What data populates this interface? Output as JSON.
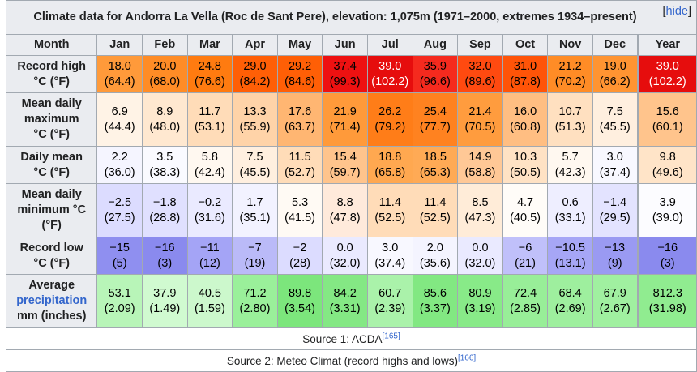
{
  "caption": "Climate data for Andorra La Vella (Roc de Sant Pere), elevation: 1,075m (1971–2000, extremes 1934–present)",
  "hide_link": "hide",
  "headers": [
    "Month",
    "Jan",
    "Feb",
    "Mar",
    "Apr",
    "May",
    "Jun",
    "Jul",
    "Aug",
    "Sep",
    "Oct",
    "Nov",
    "Dec",
    "Year"
  ],
  "rows": [
    {
      "label_lines": [
        "Record high",
        "°C (°F)"
      ],
      "cells": [
        {
          "c": "18.0",
          "f": "(64.4)",
          "bg": "#ff9a3a",
          "fg": "#000000"
        },
        {
          "c": "20.0",
          "f": "(68.0)",
          "bg": "#ff8c26",
          "fg": "#000000"
        },
        {
          "c": "24.8",
          "f": "(76.6)",
          "bg": "#ff7b10",
          "fg": "#000000"
        },
        {
          "c": "29.0",
          "f": "(84.2)",
          "bg": "#ff5f06",
          "fg": "#000000"
        },
        {
          "c": "29.2",
          "f": "(84.6)",
          "bg": "#ff5f06",
          "fg": "#000000"
        },
        {
          "c": "37.4",
          "f": "(99.3)",
          "bg": "#ee1111",
          "fg": "#000000"
        },
        {
          "c": "39.0",
          "f": "(102.2)",
          "bg": "#e60d0d",
          "fg": "#ffffff"
        },
        {
          "c": "35.9",
          "f": "(96.6)",
          "bg": "#f52a1e",
          "fg": "#000000"
        },
        {
          "c": "32.0",
          "f": "(89.6)",
          "bg": "#ff4a10",
          "fg": "#000000"
        },
        {
          "c": "31.0",
          "f": "(87.8)",
          "bg": "#ff5408",
          "fg": "#000000"
        },
        {
          "c": "21.2",
          "f": "(70.2)",
          "bg": "#ff8c26",
          "fg": "#000000"
        },
        {
          "c": "19.0",
          "f": "(66.2)",
          "bg": "#ff9432",
          "fg": "#000000"
        },
        {
          "c": "39.0",
          "f": "(102.2)",
          "bg": "#e60d0d",
          "fg": "#ffffff"
        }
      ]
    },
    {
      "label_lines": [
        "Mean daily",
        "maximum",
        "°C (°F)"
      ],
      "cells": [
        {
          "c": "6.9",
          "f": "(44.4)",
          "bg": "#fff3e6",
          "fg": "#000000"
        },
        {
          "c": "8.9",
          "f": "(48.0)",
          "bg": "#ffe8d0",
          "fg": "#000000"
        },
        {
          "c": "11.7",
          "f": "(53.1)",
          "bg": "#ffdcb8",
          "fg": "#000000"
        },
        {
          "c": "13.3",
          "f": "(55.9)",
          "bg": "#ffd3a8",
          "fg": "#000000"
        },
        {
          "c": "17.6",
          "f": "(63.7)",
          "bg": "#ffb672",
          "fg": "#000000"
        },
        {
          "c": "21.9",
          "f": "(71.4)",
          "bg": "#ff9a3a",
          "fg": "#000000"
        },
        {
          "c": "26.2",
          "f": "(79.2)",
          "bg": "#ff7d18",
          "fg": "#000000"
        },
        {
          "c": "25.4",
          "f": "(77.7)",
          "bg": "#ff8220",
          "fg": "#000000"
        },
        {
          "c": "21.4",
          "f": "(70.5)",
          "bg": "#ff9c3e",
          "fg": "#000000"
        },
        {
          "c": "16.0",
          "f": "(60.8)",
          "bg": "#ffbe82",
          "fg": "#000000"
        },
        {
          "c": "10.7",
          "f": "(51.3)",
          "bg": "#ffe0c0",
          "fg": "#000000"
        },
        {
          "c": "7.5",
          "f": "(45.5)",
          "bg": "#ffefdf",
          "fg": "#000000"
        },
        {
          "c": "15.6",
          "f": "(60.1)",
          "bg": "#ffc48c",
          "fg": "#000000"
        }
      ]
    },
    {
      "label_lines": [
        "Daily mean",
        "°C (°F)"
      ],
      "cells": [
        {
          "c": "2.2",
          "f": "(36.0)",
          "bg": "#f5f5ff",
          "fg": "#000000"
        },
        {
          "c": "3.5",
          "f": "(38.3)",
          "bg": "#fafaff",
          "fg": "#000000"
        },
        {
          "c": "5.8",
          "f": "(42.4)",
          "bg": "#fff8f0",
          "fg": "#000000"
        },
        {
          "c": "7.5",
          "f": "(45.5)",
          "bg": "#ffefdf",
          "fg": "#000000"
        },
        {
          "c": "11.5",
          "f": "(52.7)",
          "bg": "#ffdcb8",
          "fg": "#000000"
        },
        {
          "c": "15.4",
          "f": "(59.7)",
          "bg": "#ffc48c",
          "fg": "#000000"
        },
        {
          "c": "18.8",
          "f": "(65.8)",
          "bg": "#ffa850",
          "fg": "#000000"
        },
        {
          "c": "18.5",
          "f": "(65.3)",
          "bg": "#ffaa55",
          "fg": "#000000"
        },
        {
          "c": "14.9",
          "f": "(58.8)",
          "bg": "#ffc896",
          "fg": "#000000"
        },
        {
          "c": "10.3",
          "f": "(50.5)",
          "bg": "#ffe2c4",
          "fg": "#000000"
        },
        {
          "c": "5.7",
          "f": "(42.3)",
          "bg": "#fff8f0",
          "fg": "#000000"
        },
        {
          "c": "3.0",
          "f": "(37.4)",
          "bg": "#f8f8ff",
          "fg": "#000000"
        },
        {
          "c": "9.8",
          "f": "(49.6)",
          "bg": "#ffe4c8",
          "fg": "#000000"
        }
      ]
    },
    {
      "label_lines": [
        "Mean daily",
        "minimum °C",
        "(°F)"
      ],
      "cells": [
        {
          "c": "−2.5",
          "f": "(27.5)",
          "bg": "#dcdcff",
          "fg": "#000000"
        },
        {
          "c": "−1.8",
          "f": "(28.8)",
          "bg": "#e0e0ff",
          "fg": "#000000"
        },
        {
          "c": "−0.2",
          "f": "(31.6)",
          "bg": "#eaeaff",
          "fg": "#000000"
        },
        {
          "c": "1.7",
          "f": "(35.1)",
          "bg": "#f2f2ff",
          "fg": "#000000"
        },
        {
          "c": "5.3",
          "f": "(41.5)",
          "bg": "#fffaf4",
          "fg": "#000000"
        },
        {
          "c": "8.8",
          "f": "(47.8)",
          "bg": "#ffeadb",
          "fg": "#000000"
        },
        {
          "c": "11.4",
          "f": "(52.5)",
          "bg": "#ffdcb8",
          "fg": "#000000"
        },
        {
          "c": "11.4",
          "f": "(52.5)",
          "bg": "#ffdcb8",
          "fg": "#000000"
        },
        {
          "c": "8.5",
          "f": "(47.3)",
          "bg": "#ffecd8",
          "fg": "#000000"
        },
        {
          "c": "4.7",
          "f": "(40.5)",
          "bg": "#fffcf8",
          "fg": "#000000"
        },
        {
          "c": "0.6",
          "f": "(33.1)",
          "bg": "#eeeeff",
          "fg": "#000000"
        },
        {
          "c": "−1.4",
          "f": "(29.5)",
          "bg": "#e3e3ff",
          "fg": "#000000"
        },
        {
          "c": "3.9",
          "f": "(39.0)",
          "bg": "#fcfcff",
          "fg": "#000000"
        }
      ]
    },
    {
      "label_lines": [
        "Record low",
        "°C (°F)"
      ],
      "cells": [
        {
          "c": "−15",
          "f": "(5)",
          "bg": "#8f8ff0",
          "fg": "#000000"
        },
        {
          "c": "−16",
          "f": "(3)",
          "bg": "#8a8aee",
          "fg": "#000000"
        },
        {
          "c": "−11",
          "f": "(12)",
          "bg": "#a4a4f6",
          "fg": "#000000"
        },
        {
          "c": "−7",
          "f": "(19)",
          "bg": "#babaf8",
          "fg": "#000000"
        },
        {
          "c": "−2",
          "f": "(28)",
          "bg": "#dcdcff",
          "fg": "#000000"
        },
        {
          "c": "0.0",
          "f": "(32.0)",
          "bg": "#eaeaff",
          "fg": "#000000"
        },
        {
          "c": "3.0",
          "f": "(37.4)",
          "bg": "#f8f8ff",
          "fg": "#000000"
        },
        {
          "c": "2.0",
          "f": "(35.6)",
          "bg": "#f4f4ff",
          "fg": "#000000"
        },
        {
          "c": "0.0",
          "f": "(32.0)",
          "bg": "#eaeaff",
          "fg": "#000000"
        },
        {
          "c": "−6",
          "f": "(21)",
          "bg": "#c0c0fa",
          "fg": "#000000"
        },
        {
          "c": "−10.5",
          "f": "(13.1)",
          "bg": "#a6a6f6",
          "fg": "#000000"
        },
        {
          "c": "−13",
          "f": "(9)",
          "bg": "#9a9af2",
          "fg": "#000000"
        },
        {
          "c": "−16",
          "f": "(3)",
          "bg": "#8a8aee",
          "fg": "#000000"
        }
      ]
    },
    {
      "label_lines": [
        "Average",
        "precipitation",
        "mm (inches)"
      ],
      "link_line": 1,
      "cells": [
        {
          "c": "53.1",
          "f": "(2.09)",
          "bg": "#b8f5b8",
          "fg": "#000000"
        },
        {
          "c": "37.9",
          "f": "(1.49)",
          "bg": "#d0fad0",
          "fg": "#000000"
        },
        {
          "c": "40.5",
          "f": "(1.59)",
          "bg": "#ccf8cc",
          "fg": "#000000"
        },
        {
          "c": "71.2",
          "f": "(2.80)",
          "bg": "#9af09a",
          "fg": "#000000"
        },
        {
          "c": "89.8",
          "f": "(3.54)",
          "bg": "#7ce67c",
          "fg": "#000000"
        },
        {
          "c": "84.2",
          "f": "(3.31)",
          "bg": "#84e884",
          "fg": "#000000"
        },
        {
          "c": "60.7",
          "f": "(2.39)",
          "bg": "#aaf2aa",
          "fg": "#000000"
        },
        {
          "c": "85.6",
          "f": "(3.37)",
          "bg": "#82e882",
          "fg": "#000000"
        },
        {
          "c": "80.9",
          "f": "(3.19)",
          "bg": "#88ea88",
          "fg": "#000000"
        },
        {
          "c": "72.4",
          "f": "(2.85)",
          "bg": "#98ee98",
          "fg": "#000000"
        },
        {
          "c": "68.4",
          "f": "(2.69)",
          "bg": "#9eef9e",
          "fg": "#000000"
        },
        {
          "c": "67.9",
          "f": "(2.67)",
          "bg": "#a0f0a0",
          "fg": "#000000"
        },
        {
          "c": "812.3",
          "f": "(31.98)",
          "bg": "#90ec90",
          "fg": "#000000"
        }
      ]
    }
  ],
  "sources": [
    {
      "text": "Source 1: ACDA",
      "ref": "[165]"
    },
    {
      "text": "Source 2: Meteo Climat (record highs and lows)",
      "ref": "[166]"
    }
  ]
}
